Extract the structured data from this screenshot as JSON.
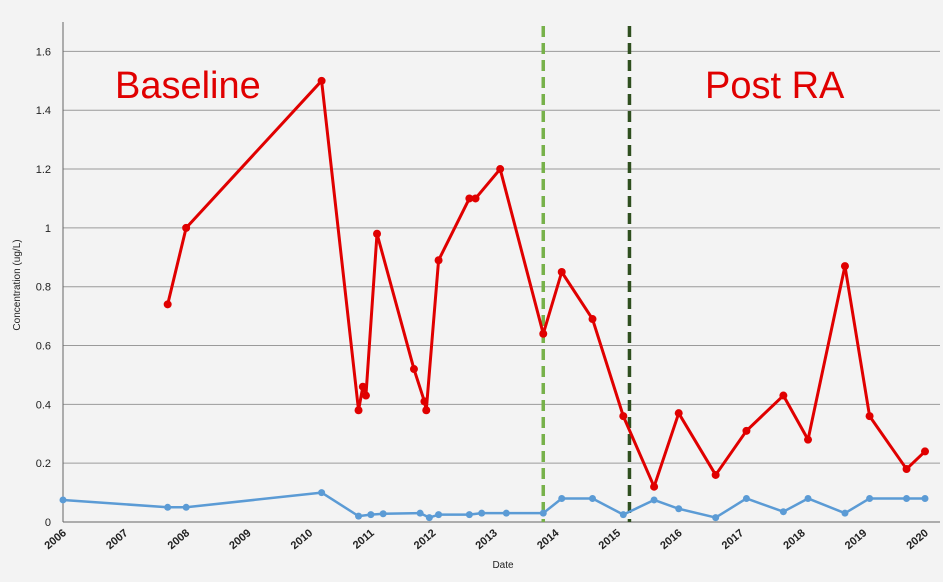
{
  "chart_data": {
    "type": "line",
    "title": "",
    "xlabel": "Date",
    "ylabel": "Concentration (ug/L)",
    "xlim": [
      2006,
      2020
    ],
    "ylim": [
      0,
      1.7
    ],
    "grid": true,
    "x_ticks": [
      2006,
      2007,
      2008,
      2009,
      2010,
      2011,
      2012,
      2013,
      2014,
      2015,
      2016,
      2017,
      2018,
      2019,
      2020
    ],
    "x_tick_labels": [
      "2006",
      "2007",
      "2008",
      "2009",
      "2010",
      "2011",
      "2012",
      "2013",
      "2014",
      "2015",
      "2016",
      "2017",
      "2018",
      "2019",
      "2020"
    ],
    "y_ticks": [
      0,
      0.2,
      0.4,
      0.6,
      0.8,
      1,
      1.2,
      1.4,
      1.6
    ],
    "y_tick_labels": [
      "0",
      "0.2",
      "0.4",
      "0.6",
      "0.8",
      "1",
      "1.2",
      "1.4",
      "1.6"
    ],
    "annotations": [
      {
        "text": "Baseline"
      },
      {
        "text": "Post RA"
      }
    ],
    "vlines": [
      {
        "x": 2013.8,
        "color": "#77b14a",
        "style": "dashed"
      },
      {
        "x": 2015.2,
        "color": "#2f4f1f",
        "style": "dashed"
      }
    ],
    "series": [
      {
        "color": "#e00000",
        "points": [
          [
            2007.7,
            0.74
          ],
          [
            2008.0,
            1.0
          ],
          [
            2010.2,
            1.5
          ],
          [
            2010.8,
            0.38
          ],
          [
            2010.87,
            0.46
          ],
          [
            2010.92,
            0.43
          ],
          [
            2011.1,
            0.98
          ],
          [
            2011.7,
            0.52
          ],
          [
            2011.87,
            0.41
          ],
          [
            2011.9,
            0.38
          ],
          [
            2012.1,
            0.89
          ],
          [
            2012.6,
            1.1
          ],
          [
            2012.7,
            1.1
          ],
          [
            2013.1,
            1.2
          ],
          [
            2013.8,
            0.64
          ],
          [
            2014.1,
            0.85
          ],
          [
            2014.6,
            0.69
          ],
          [
            2015.1,
            0.36
          ],
          [
            2015.6,
            0.12
          ],
          [
            2016.0,
            0.37
          ],
          [
            2016.6,
            0.16
          ],
          [
            2017.1,
            0.31
          ],
          [
            2017.7,
            0.43
          ],
          [
            2018.1,
            0.28
          ],
          [
            2018.7,
            0.87
          ],
          [
            2019.1,
            0.36
          ],
          [
            2019.7,
            0.18
          ],
          [
            2020.0,
            0.24
          ]
        ]
      },
      {
        "color": "#5b9bd5",
        "points": [
          [
            2006.0,
            0.075
          ],
          [
            2007.7,
            0.05
          ],
          [
            2008.0,
            0.05
          ],
          [
            2010.2,
            0.1
          ],
          [
            2010.8,
            0.02
          ],
          [
            2011.0,
            0.025
          ],
          [
            2011.2,
            0.028
          ],
          [
            2011.8,
            0.03
          ],
          [
            2011.95,
            0.015
          ],
          [
            2012.1,
            0.025
          ],
          [
            2012.6,
            0.025
          ],
          [
            2012.8,
            0.03
          ],
          [
            2013.2,
            0.03
          ],
          [
            2013.8,
            0.03
          ],
          [
            2014.1,
            0.08
          ],
          [
            2014.6,
            0.08
          ],
          [
            2015.1,
            0.025
          ],
          [
            2015.6,
            0.075
          ],
          [
            2016.0,
            0.045
          ],
          [
            2016.6,
            0.015
          ],
          [
            2017.1,
            0.08
          ],
          [
            2017.7,
            0.035
          ],
          [
            2018.1,
            0.08
          ],
          [
            2018.7,
            0.03
          ],
          [
            2019.1,
            0.08
          ],
          [
            2019.7,
            0.08
          ],
          [
            2020.0,
            0.08
          ]
        ]
      }
    ]
  }
}
